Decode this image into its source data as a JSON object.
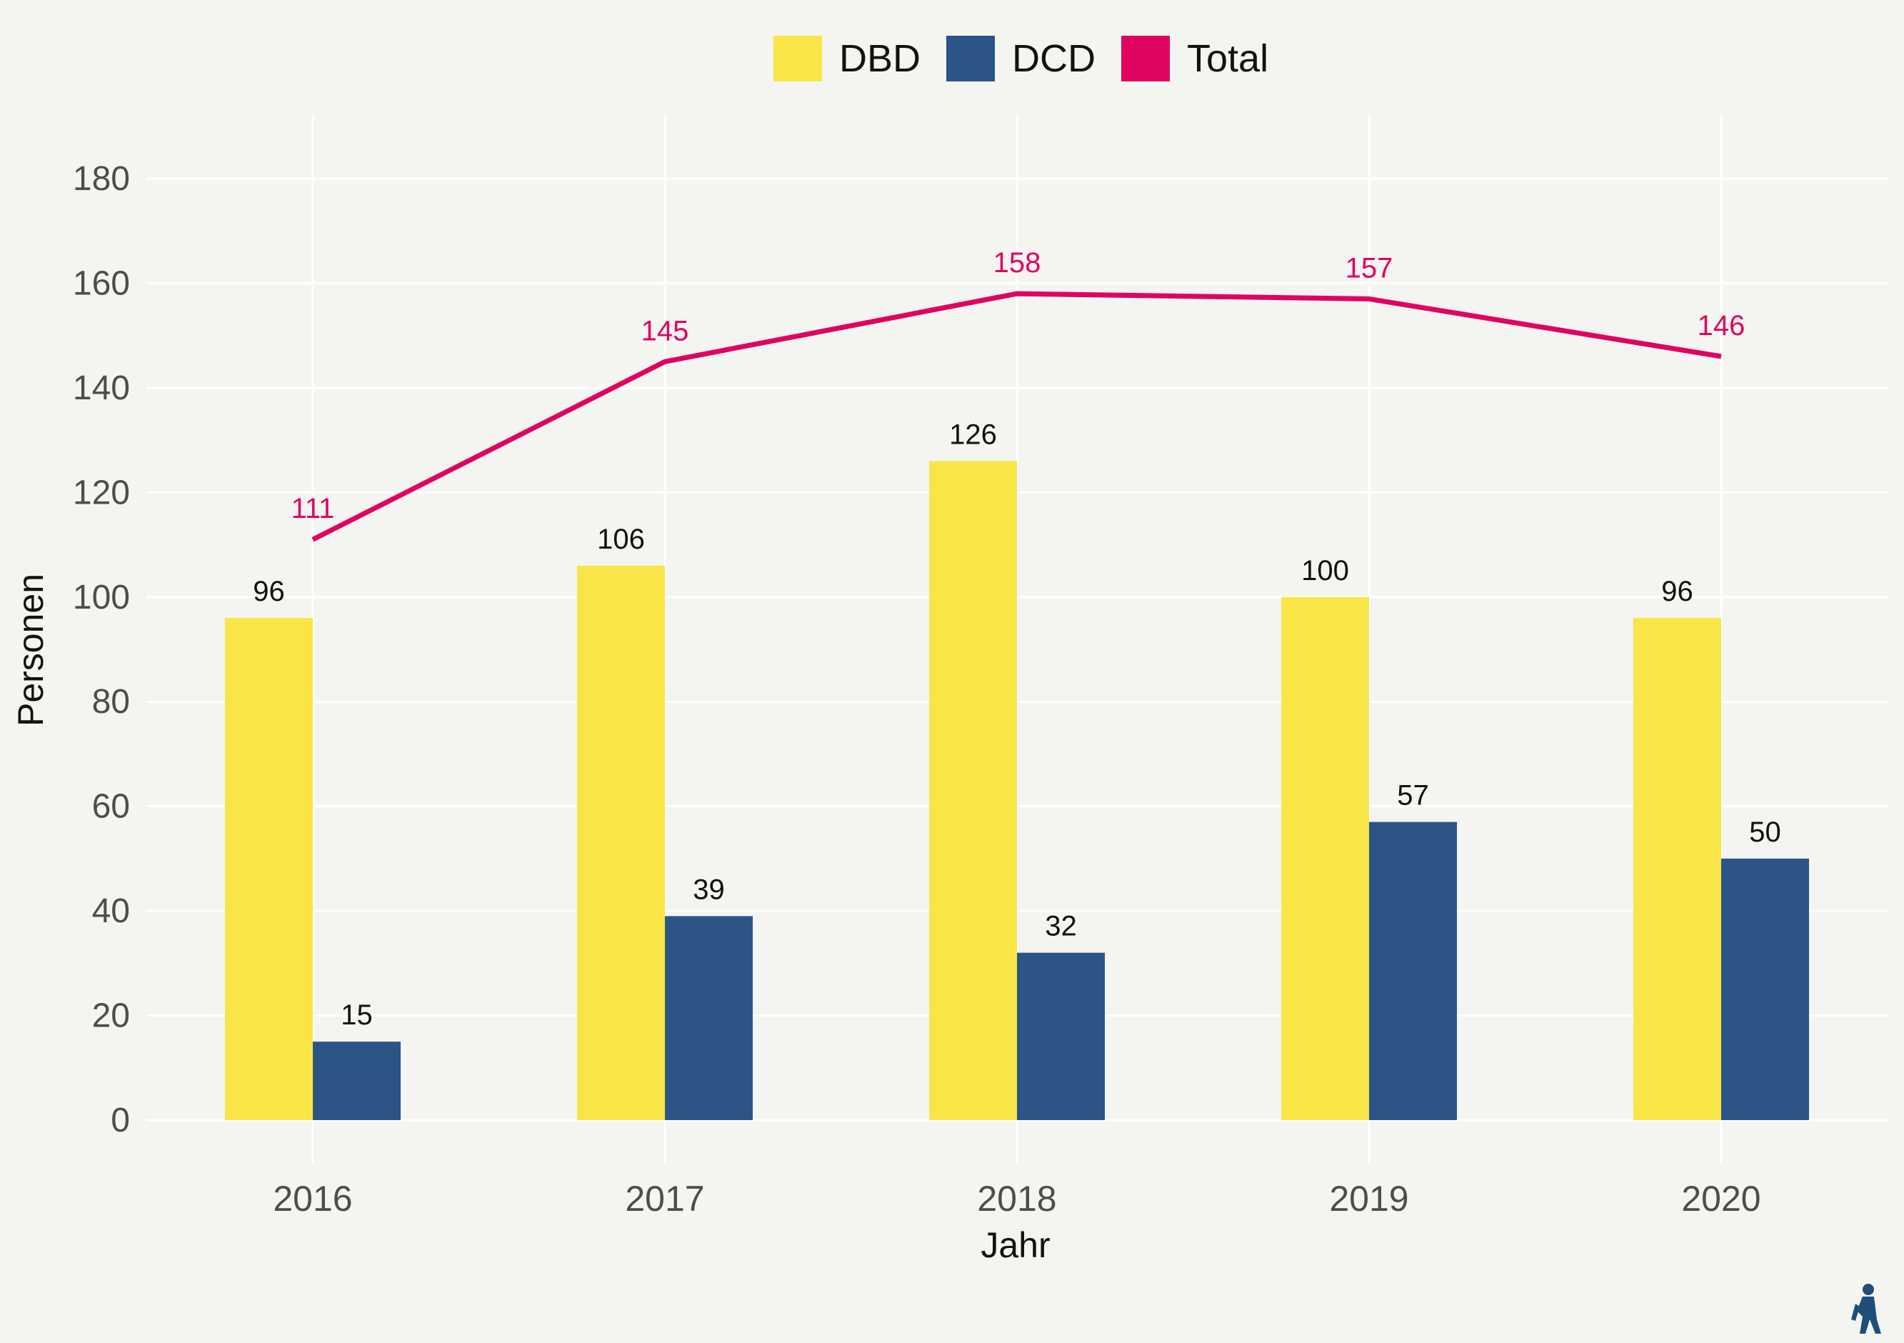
{
  "chart_data": {
    "type": "bar",
    "categories": [
      "2016",
      "2017",
      "2018",
      "2019",
      "2020"
    ],
    "series": [
      {
        "name": "DBD",
        "kind": "bar",
        "color": "#f9e547",
        "values": [
          96,
          106,
          126,
          100,
          96
        ]
      },
      {
        "name": "DCD",
        "kind": "bar",
        "color": "#2c5487",
        "values": [
          15,
          39,
          32,
          57,
          50
        ]
      },
      {
        "name": "Total",
        "kind": "line",
        "color": "#e0035f",
        "values": [
          111,
          145,
          158,
          157,
          146
        ]
      }
    ],
    "title": "",
    "xlabel": "Jahr",
    "ylabel": "Personen",
    "ylim": [
      0,
      180
    ],
    "yticks": [
      0,
      20,
      40,
      60,
      80,
      100,
      120,
      140,
      160,
      180
    ],
    "grid": true,
    "legend_position": "top",
    "data_labels": true
  },
  "colors": {
    "background": "#f4f4f1",
    "grid": "#ffffff",
    "axis_text": "#4d4d4d",
    "label_text": "#111111",
    "logo": "#1f4e79"
  },
  "logo": {
    "icon": "person-figure-logo-icon"
  }
}
